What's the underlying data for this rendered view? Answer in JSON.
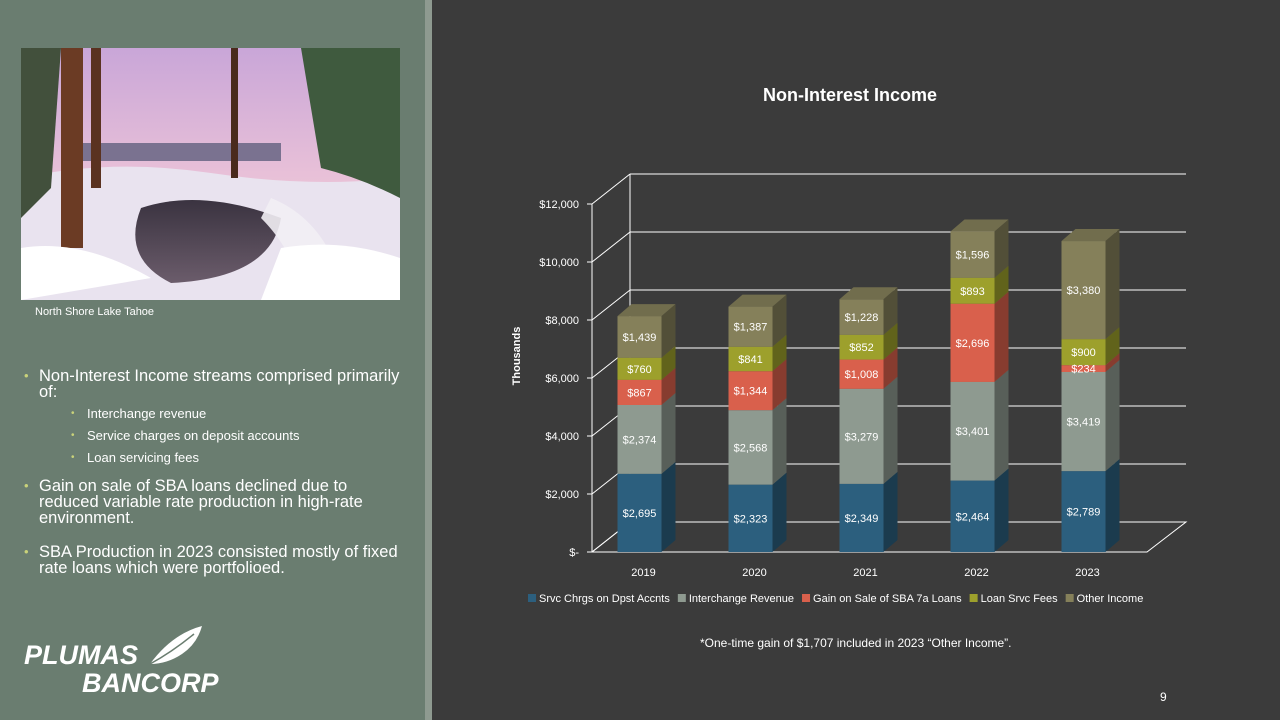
{
  "sidebar": {
    "photo_caption": "North Shore Lake Tahoe",
    "bullets": [
      {
        "text": "Non-Interest Income streams comprised primarily of:",
        "sub": [
          "Interchange revenue",
          "Service charges on deposit accounts",
          "Loan servicing fees"
        ]
      },
      {
        "text": "Gain on sale of SBA loans declined due to reduced variable rate production in high-rate environment."
      },
      {
        "text": "SBA Production in 2023 consisted mostly of fixed rate loans which were portfolioed."
      }
    ],
    "logo_line1": "PLUMAS",
    "logo_line2": "BANCORP"
  },
  "footnote": "*One-time gain of $1,707 included in 2023 “Other Income”.",
  "page_number": "9",
  "chart_data": {
    "type": "bar",
    "stacked": true,
    "title": "Non-Interest Income",
    "ylabel": "Thousands",
    "xlabel": "",
    "categories": [
      "2019",
      "2020",
      "2021",
      "2022",
      "2023"
    ],
    "ylim": [
      0,
      12000
    ],
    "yticks": [
      0,
      2000,
      4000,
      6000,
      8000,
      10000,
      12000
    ],
    "ytick_labels": [
      "$-",
      "$2,000",
      "$4,000",
      "$6,000",
      "$8,000",
      "$10,000",
      "$12,000"
    ],
    "legend_position": "bottom",
    "grid": true,
    "series": [
      {
        "name": "Srvc Chrgs on Dpst Accnts",
        "color": "#2c5f7e",
        "values": [
          2695,
          2323,
          2349,
          2464,
          2789
        ],
        "labels": [
          "$2,695",
          "$2,323",
          "$2,349",
          "$2,464",
          "$2,789"
        ]
      },
      {
        "name": "Interchange Revenue",
        "color": "#8e9a90",
        "values": [
          2374,
          2568,
          3279,
          3401,
          3419
        ],
        "labels": [
          "$2,374",
          "$2,568",
          "$3,279",
          "$3,401",
          "$3,419"
        ]
      },
      {
        "name": "Gain on Sale of SBA 7a Loans",
        "color": "#d9604c",
        "values": [
          867,
          1344,
          1008,
          2696,
          234
        ],
        "labels": [
          "$867",
          "$1,344",
          "$1,008",
          "$2,696",
          "$234"
        ]
      },
      {
        "name": "Loan Srvc Fees",
        "color": "#9da02c",
        "values": [
          760,
          841,
          852,
          893,
          900
        ],
        "labels": [
          "$760",
          "$841",
          "$852",
          "$893",
          "$900"
        ]
      },
      {
        "name": "Other Income",
        "color": "#85805a",
        "values": [
          1439,
          1387,
          1228,
          1596,
          3380
        ],
        "labels": [
          "$1,439",
          "$1,387",
          "$1,228",
          "$1,596",
          "$3,380"
        ]
      }
    ]
  }
}
